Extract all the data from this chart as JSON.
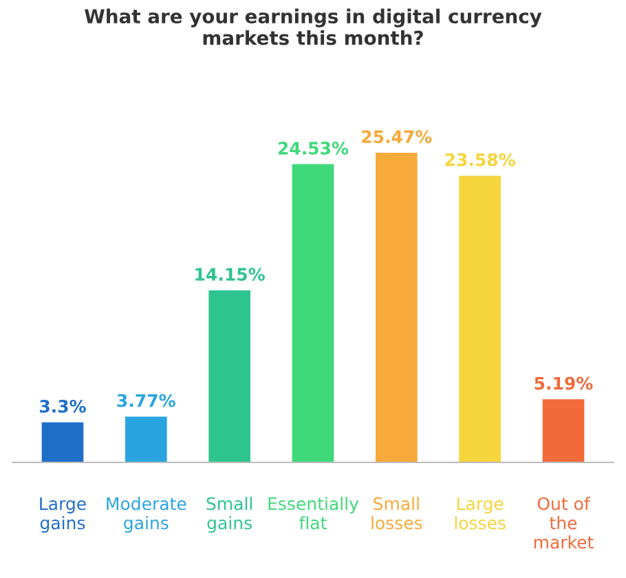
{
  "chart_data": {
    "type": "bar",
    "title": "What are your earnings in digital currency\nmarkets this month?",
    "categories": [
      "Large\ngains",
      "Moderate\ngains",
      "Small\ngains",
      "Essentially\nflat",
      "Small\nlosses",
      "Large\nlosses",
      "Out of\nthe\nmarket"
    ],
    "values": [
      3.3,
      3.77,
      14.15,
      24.53,
      25.47,
      23.58,
      5.19
    ],
    "value_labels": [
      "3.3%",
      "3.77%",
      "14.15%",
      "24.53%",
      "25.47%",
      "23.58%",
      "5.19%"
    ],
    "colors": [
      "#1f6fc9",
      "#2aa4e0",
      "#2ec48f",
      "#3fd97a",
      "#f7a93a",
      "#f5d43c",
      "#f26a3a"
    ],
    "grid": false,
    "legend": false
  }
}
